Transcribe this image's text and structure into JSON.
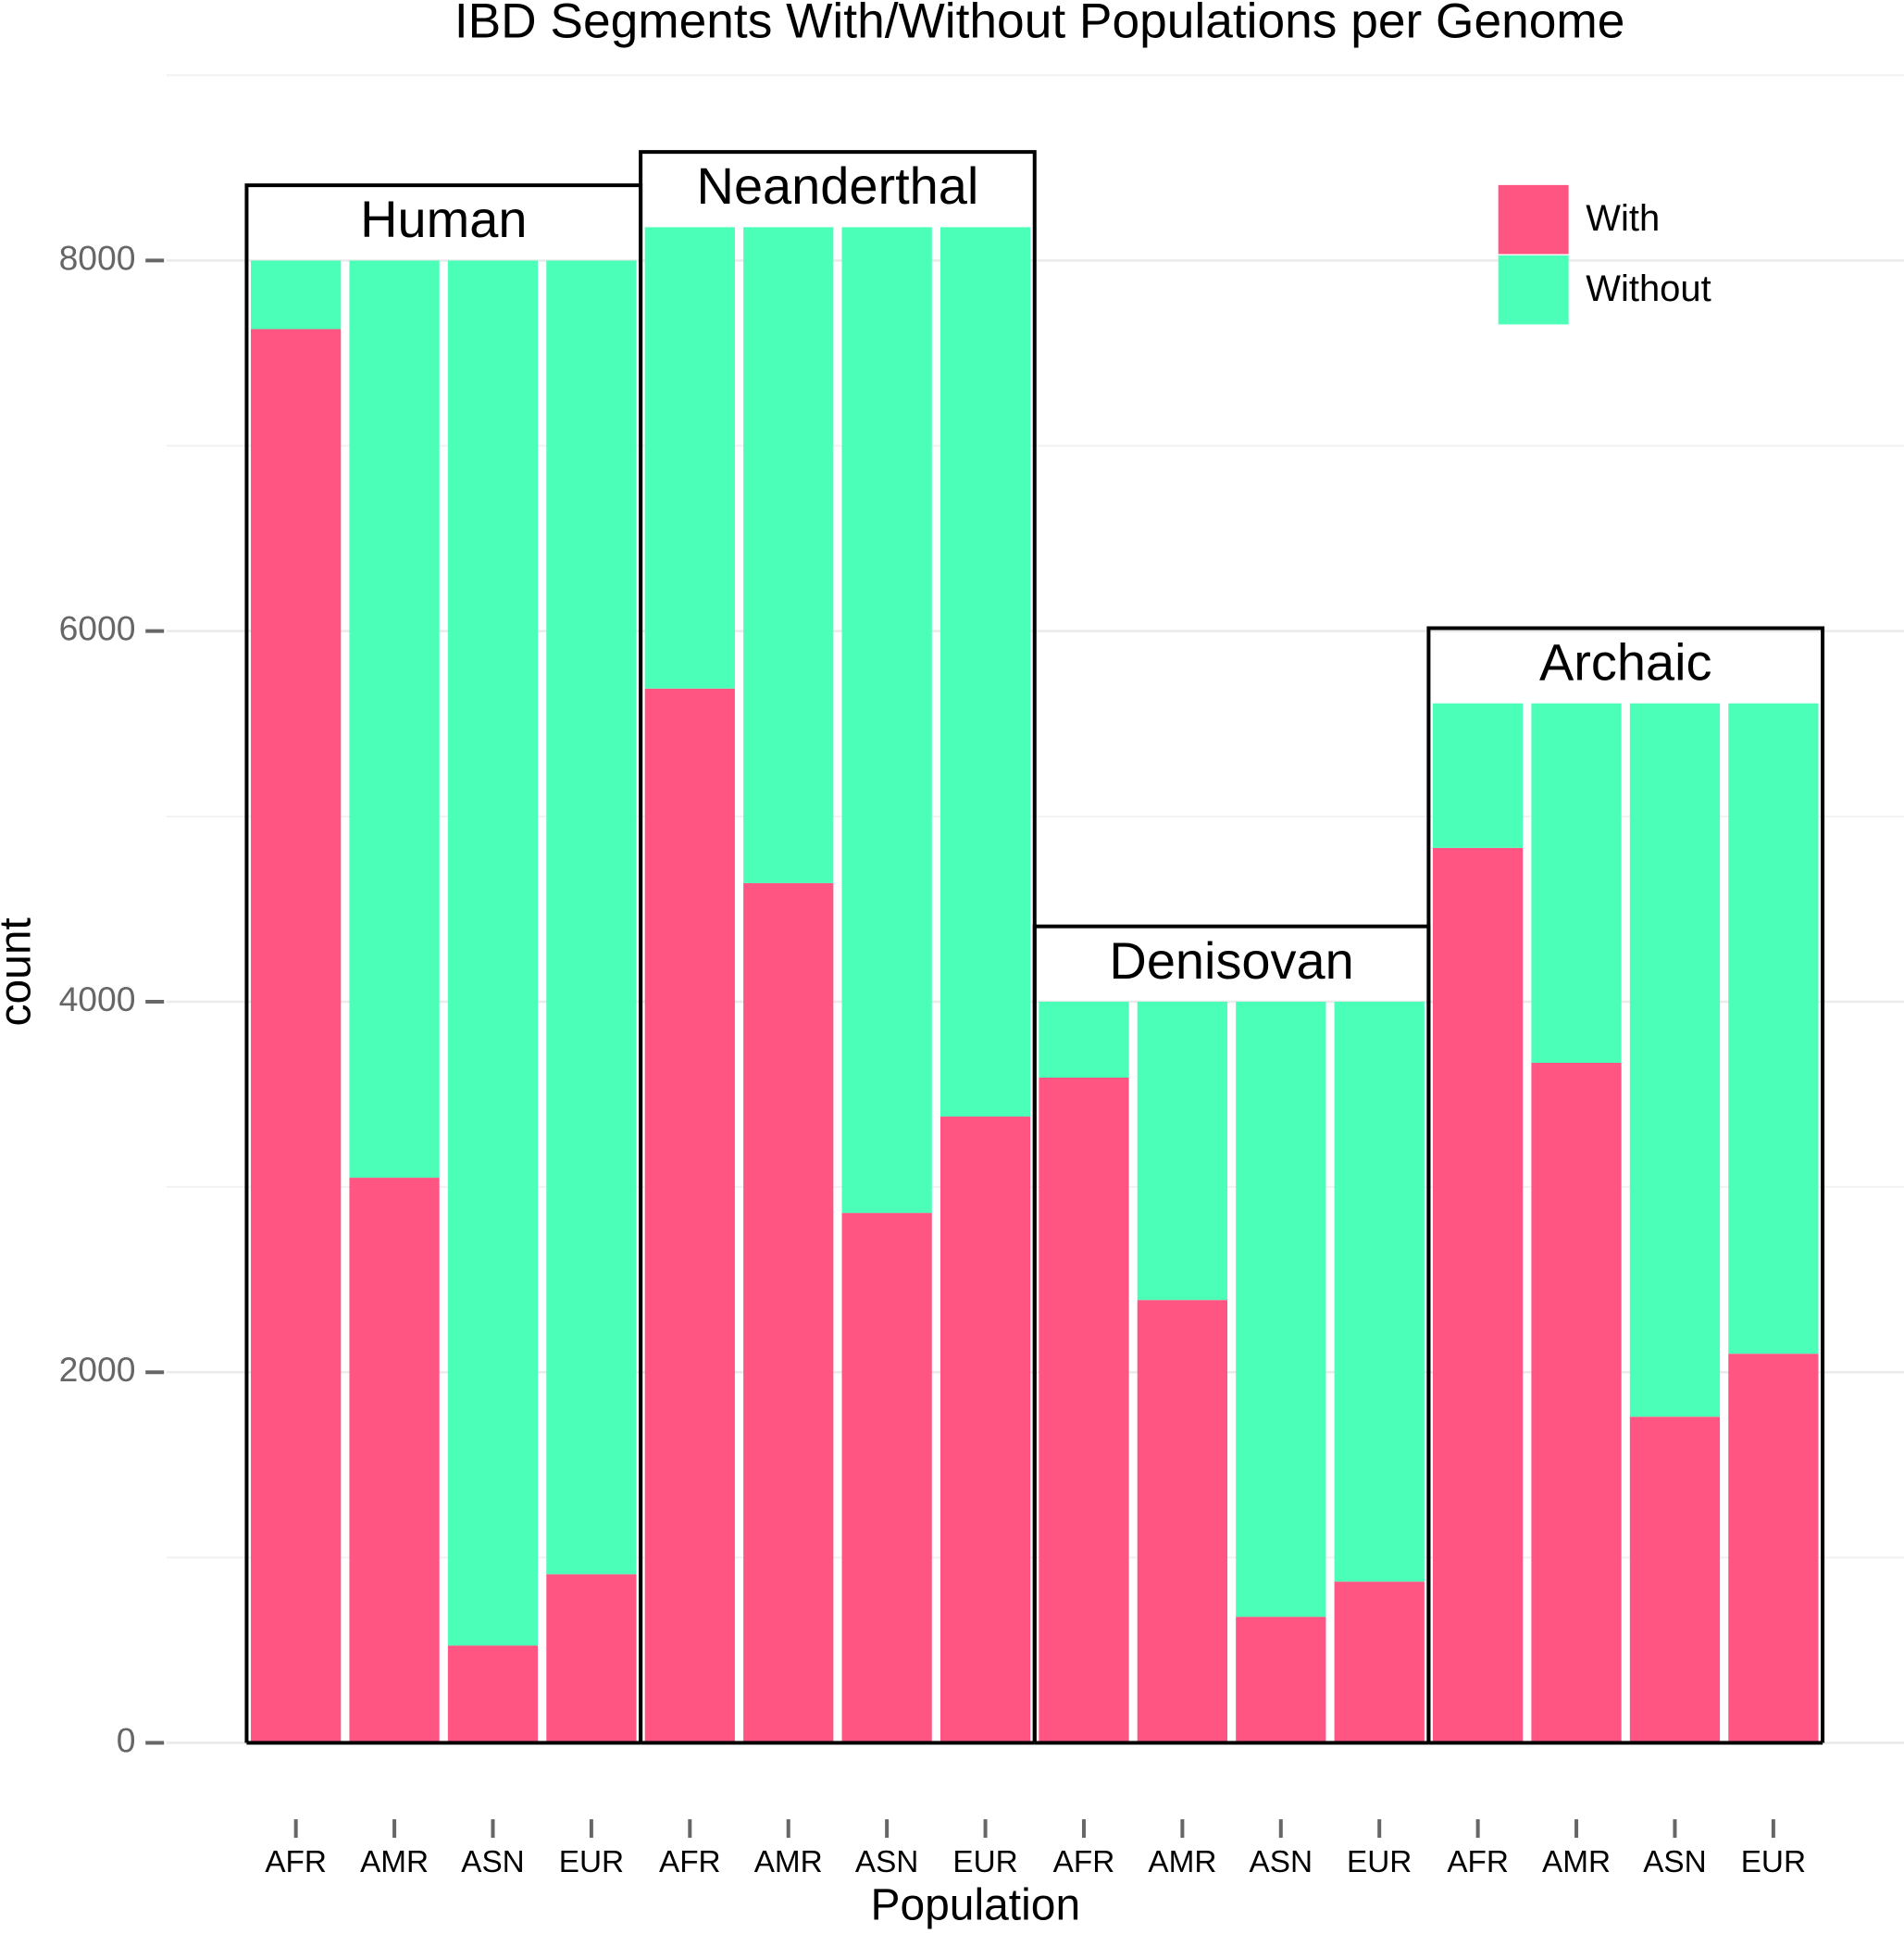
{
  "chart_data": {
    "type": "stacked_bar",
    "title": "IBD Segments With/Without Populations per Genome",
    "x_label": "Population",
    "y_label": "count",
    "groups": [
      "Human",
      "Neanderthal",
      "Denisovan",
      "Archaic"
    ],
    "categories": [
      "AFR",
      "AMR",
      "ASN",
      "EUR",
      "AFR",
      "AMR",
      "ASN",
      "EUR",
      "AFR",
      "AMR",
      "ASN",
      "EUR",
      "AFR",
      "AMR",
      "ASN",
      "EUR"
    ],
    "series": [
      {
        "name": "With",
        "color": "#ff5582",
        "values": [
          7630,
          3050,
          525,
          910,
          5690,
          4640,
          2860,
          3380,
          3590,
          2390,
          680,
          870,
          4830,
          3670,
          1760,
          2100
        ]
      },
      {
        "name": "Without",
        "color": "#4cffb9",
        "values": [
          370,
          4950,
          7475,
          7090,
          2490,
          3540,
          5320,
          4800,
          410,
          1610,
          3320,
          3130,
          780,
          1940,
          3850,
          3510
        ]
      }
    ],
    "ylim": [
      0,
      9000
    ],
    "yticks": [
      0,
      2000,
      4000,
      6000,
      8000
    ],
    "yminor": [
      1000,
      3000,
      5000,
      7000,
      9000
    ],
    "grid": true,
    "legend": "top-right"
  }
}
